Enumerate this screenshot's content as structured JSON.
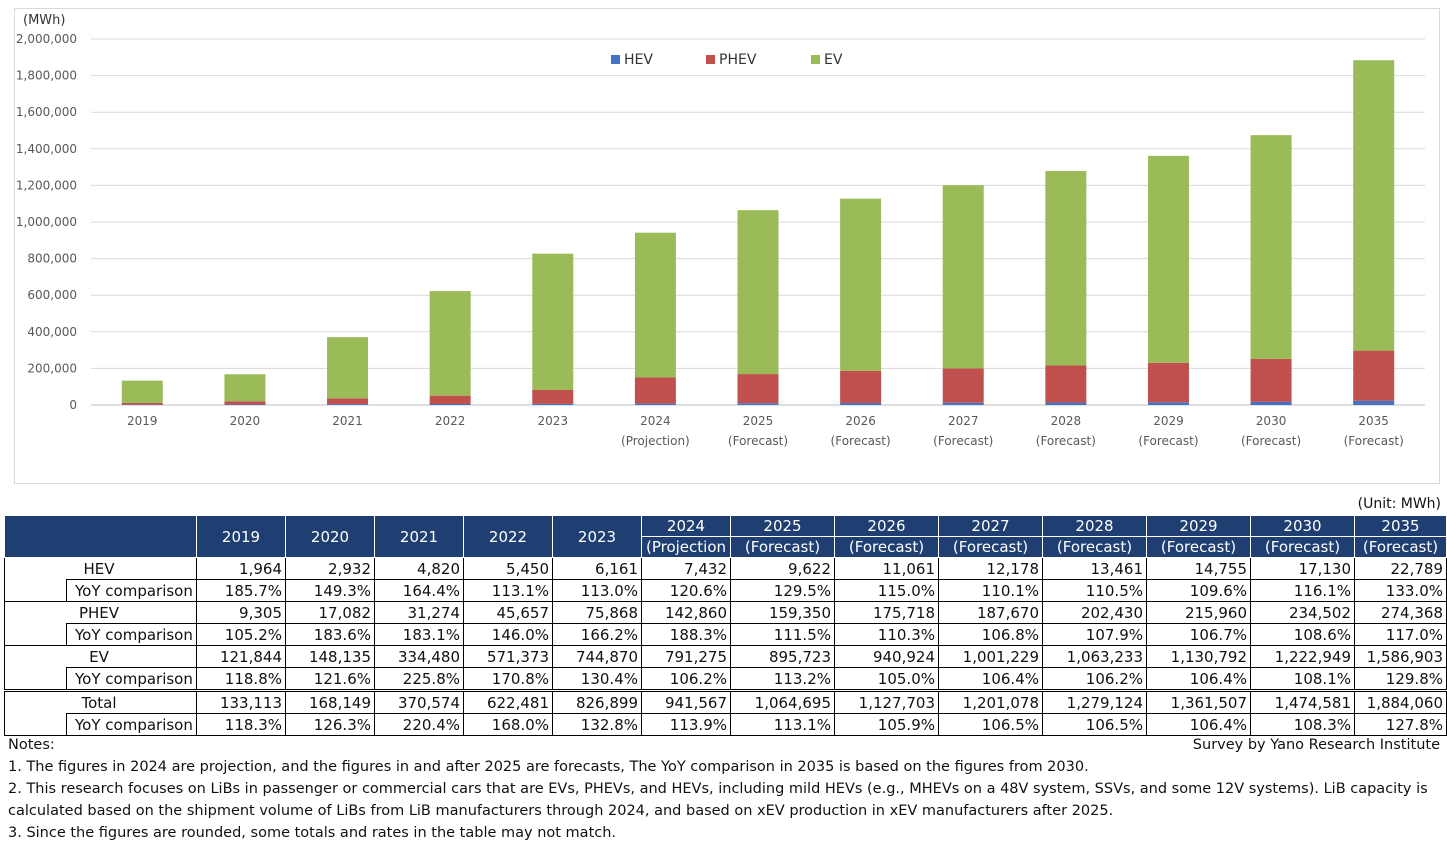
{
  "chart_data": {
    "type": "bar",
    "stacked": true,
    "unit_label": "(MWh)",
    "categories": [
      "2019",
      "2020",
      "2021",
      "2022",
      "2023",
      "2024",
      "2025",
      "2026",
      "2027",
      "2028",
      "2029",
      "2030",
      "2035"
    ],
    "category_sublabels": [
      "",
      "",
      "",
      "",
      "",
      "(Projection)",
      "(Forecast)",
      "(Forecast)",
      "(Forecast)",
      "(Forecast)",
      "(Forecast)",
      "(Forecast)",
      "(Forecast)"
    ],
    "series": [
      {
        "name": "HEV",
        "color": "#4472c4",
        "values": [
          1964,
          2932,
          4820,
          5450,
          6161,
          7432,
          9622,
          11061,
          12178,
          13461,
          14755,
          17130,
          22789
        ]
      },
      {
        "name": "PHEV",
        "color": "#c0504d",
        "values": [
          9305,
          17082,
          31274,
          45657,
          75868,
          142860,
          159350,
          175718,
          187670,
          202430,
          215960,
          234502,
          274368
        ]
      },
      {
        "name": "EV",
        "color": "#9bbb59",
        "values": [
          121844,
          148135,
          334480,
          571373,
          744870,
          791275,
          895723,
          940924,
          1001229,
          1063233,
          1130792,
          1222949,
          1586903
        ]
      }
    ],
    "ylim": [
      0,
      2000000
    ],
    "yticks": [
      0,
      200000,
      400000,
      600000,
      800000,
      1000000,
      1200000,
      1400000,
      1600000,
      1800000,
      2000000
    ],
    "ytick_labels": [
      "0",
      "200,000",
      "400,000",
      "600,000",
      "800,000",
      "1,000,000",
      "1,200,000",
      "1,400,000",
      "1,600,000",
      "1,800,000",
      "2,000,000"
    ],
    "legend_position": "top-center"
  },
  "table": {
    "unit": "(Unit: MWh)",
    "header_top": [
      "2019",
      "2020",
      "2021",
      "2022",
      "2023",
      "2024",
      "2025",
      "2026",
      "2027",
      "2028",
      "2029",
      "2030",
      "2035"
    ],
    "header_bottom": [
      "",
      "",
      "",
      "",
      "",
      "(Projection",
      "(Forecast)",
      "(Forecast)",
      "(Forecast)",
      "(Forecast)",
      "(Forecast)",
      "(Forecast)",
      "(Forecast)"
    ],
    "groups": [
      {
        "label": "HEV",
        "values": [
          "1,964",
          "2,932",
          "4,820",
          "5,450",
          "6,161",
          "7,432",
          "9,622",
          "11,061",
          "12,178",
          "13,461",
          "14,755",
          "17,130",
          "22,789"
        ],
        "yoy_label": "YoY comparison",
        "yoy": [
          "185.7%",
          "149.3%",
          "164.4%",
          "113.1%",
          "113.0%",
          "120.6%",
          "129.5%",
          "115.0%",
          "110.1%",
          "110.5%",
          "109.6%",
          "116.1%",
          "133.0%"
        ]
      },
      {
        "label": "PHEV",
        "values": [
          "9,305",
          "17,082",
          "31,274",
          "45,657",
          "75,868",
          "142,860",
          "159,350",
          "175,718",
          "187,670",
          "202,430",
          "215,960",
          "234,502",
          "274,368"
        ],
        "yoy_label": "YoY comparison",
        "yoy": [
          "105.2%",
          "183.6%",
          "183.1%",
          "146.0%",
          "166.2%",
          "188.3%",
          "111.5%",
          "110.3%",
          "106.8%",
          "107.9%",
          "106.7%",
          "108.6%",
          "117.0%"
        ]
      },
      {
        "label": "EV",
        "values": [
          "121,844",
          "148,135",
          "334,480",
          "571,373",
          "744,870",
          "791,275",
          "895,723",
          "940,924",
          "1,001,229",
          "1,063,233",
          "1,130,792",
          "1,222,949",
          "1,586,903"
        ],
        "yoy_label": "YoY comparison",
        "yoy": [
          "118.8%",
          "121.6%",
          "225.8%",
          "170.8%",
          "130.4%",
          "106.2%",
          "113.2%",
          "105.0%",
          "106.4%",
          "106.2%",
          "106.4%",
          "108.1%",
          "129.8%"
        ]
      },
      {
        "label": "Total",
        "values": [
          "133,113",
          "168,149",
          "370,574",
          "622,481",
          "826,899",
          "941,567",
          "1,064,695",
          "1,127,703",
          "1,201,078",
          "1,279,124",
          "1,361,507",
          "1,474,581",
          "1,884,060"
        ],
        "yoy_label": "YoY comparison",
        "yoy": [
          "118.3%",
          "126.3%",
          "220.4%",
          "168.0%",
          "132.8%",
          "113.9%",
          "113.1%",
          "105.9%",
          "106.5%",
          "106.5%",
          "106.4%",
          "108.3%",
          "127.8%"
        ]
      }
    ]
  },
  "notes": {
    "heading": "Notes:",
    "source": "Survey by Yano Research Institute",
    "items": [
      "1. The figures in 2024 are projection, and the figures in and after 2025 are forecasts, The YoY comparison in 2035 is based on the figures from 2030.",
      "2. This research focuses on LiBs in passenger or commercial cars that are EVs, PHEVs, and HEVs, including mild HEVs (e.g., MHEVs on a 48V system, SSVs, and some 12V systems). LiB capacity is calculated based on the shipment volume of LiBs from LiB manufacturers through 2024, and based on xEV production in xEV manufacturers after 2025.",
      "3. Since the figures are rounded, some totals and rates in the table may not match."
    ]
  }
}
